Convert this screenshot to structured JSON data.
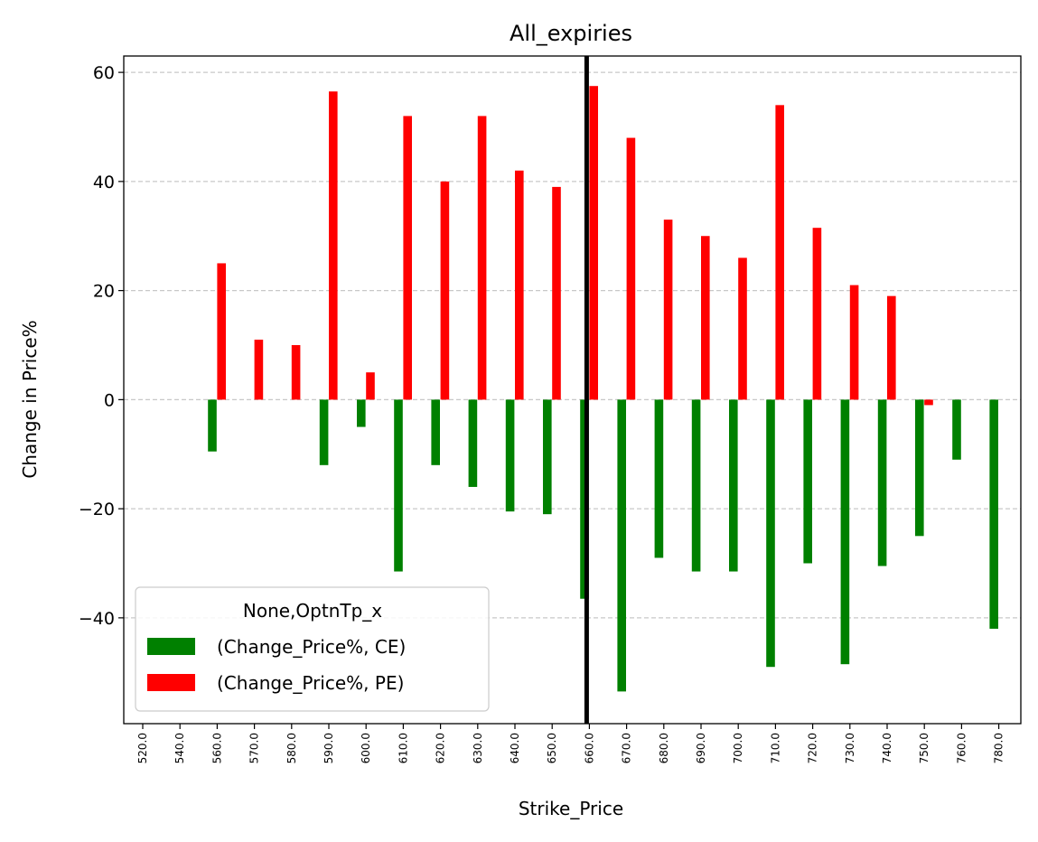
{
  "chart_data": {
    "type": "bar",
    "title": "All_expiries",
    "xlabel": "Strike_Price",
    "ylabel": "Change in Price%",
    "categories": [
      "520.0",
      "540.0",
      "560.0",
      "570.0",
      "580.0",
      "590.0",
      "600.0",
      "610.0",
      "620.0",
      "630.0",
      "640.0",
      "650.0",
      "660.0",
      "670.0",
      "680.0",
      "690.0",
      "700.0",
      "710.0",
      "720.0",
      "730.0",
      "740.0",
      "750.0",
      "760.0",
      "780.0"
    ],
    "series": [
      {
        "name": "(Change_Price%, CE)",
        "color": "#008000",
        "values": [
          null,
          -9.5,
          null,
          null,
          -12,
          -5,
          -31.5,
          -12,
          -16,
          -20.5,
          -21,
          -36.5,
          -53.5,
          -29,
          -31.5,
          -31.5,
          -49,
          -30,
          -48.5,
          -30.5,
          -25,
          -11,
          -42,
          null
        ]
      },
      {
        "name": "(Change_Price%, PE)",
        "color": "#ff0000",
        "values": [
          null,
          25,
          11,
          10,
          56.5,
          5,
          52,
          40,
          52,
          42,
          39,
          57.5,
          48,
          33,
          30,
          26,
          54,
          31.5,
          21,
          19,
          -1,
          null,
          null,
          null
        ]
      }
    ],
    "ylim": [
      -59.4,
      63
    ],
    "yticks": [
      -40,
      -20,
      0,
      20,
      40,
      60
    ],
    "ytick_labels": [
      "−40",
      "−20",
      "0",
      "20",
      "40",
      "60"
    ],
    "vline": {
      "category": "660.0",
      "color": "#000000"
    },
    "grid": "y-dashed",
    "legend": {
      "title": "None,OptnTp_x",
      "placement": "lower-left"
    }
  }
}
